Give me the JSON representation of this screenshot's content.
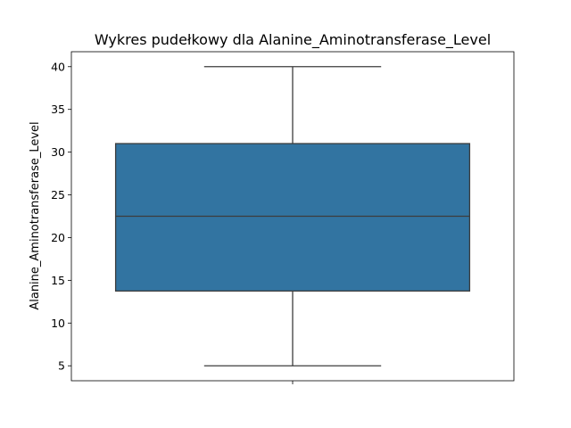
{
  "chart_data": {
    "type": "box",
    "title": "Wykres pudełkowy dla Alanine_Aminotransferase_Level",
    "xlabel": "",
    "ylabel": "Alanine_Aminotransferase_Level",
    "ylim": [
      3.25,
      41.75
    ],
    "yticks": [
      5,
      10,
      15,
      20,
      25,
      30,
      35,
      40
    ],
    "grid": false,
    "series": [
      {
        "whisker_low": 5,
        "q1": 13.75,
        "median": 22.5,
        "q3": 31,
        "whisker_high": 40,
        "color": "#3274a1"
      }
    ]
  }
}
